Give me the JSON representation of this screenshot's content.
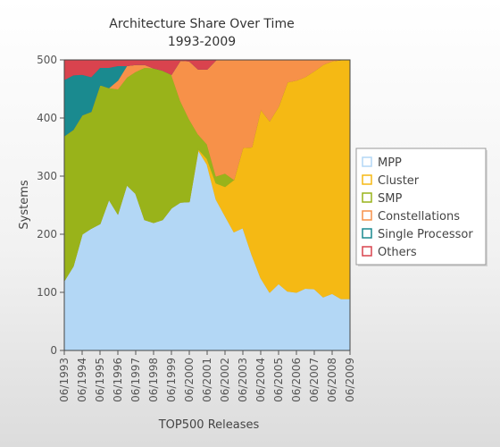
{
  "chart_data": {
    "type": "area",
    "stacked": true,
    "title": "Architecture Share Over Time",
    "subtitle": "1993-2009",
    "xlabel": "TOP500 Releases",
    "ylabel": "Systems",
    "ylim": [
      0,
      500
    ],
    "yticks": [
      0,
      100,
      200,
      300,
      400,
      500
    ],
    "x": [
      "06/1993",
      "11/1993",
      "06/1994",
      "11/1994",
      "06/1995",
      "11/1995",
      "06/1996",
      "11/1996",
      "06/1997",
      "11/1997",
      "06/1998",
      "11/1998",
      "06/1999",
      "11/1999",
      "06/2000",
      "11/2000",
      "06/2001",
      "11/2001",
      "06/2002",
      "11/2002",
      "06/2003",
      "11/2003",
      "06/2004",
      "11/2004",
      "06/2005",
      "11/2005",
      "06/2006",
      "11/2006",
      "06/2007",
      "11/2007",
      "06/2008",
      "11/2008",
      "06/2009"
    ],
    "xtick_labels": [
      "06/1993",
      "06/1994",
      "06/1995",
      "06/1996",
      "06/1997",
      "06/1998",
      "06/1999",
      "06/2000",
      "06/2001",
      "06/2002",
      "06/2003",
      "06/2004",
      "06/2005",
      "06/2006",
      "06/2007",
      "06/2008",
      "06/2009"
    ],
    "legend_position": "right",
    "grid": false,
    "series": [
      {
        "name": "MPP",
        "color": "#b3d7f5",
        "values": [
          120,
          145,
          200,
          210,
          218,
          260,
          235,
          285,
          270,
          225,
          220,
          225,
          245,
          255,
          256,
          345,
          320,
          260,
          232,
          204,
          211,
          165,
          125,
          100,
          115,
          102,
          100,
          107,
          106,
          92,
          98,
          89,
          89
        ]
      },
      {
        "name": "Cluster",
        "color": "#f5b914",
        "values": [
          0,
          0,
          0,
          0,
          0,
          0,
          0,
          0,
          0,
          0,
          0,
          0,
          0,
          0,
          0,
          2,
          10,
          28,
          50,
          90,
          138,
          185,
          290,
          295,
          305,
          360,
          365,
          364,
          375,
          400,
          400,
          411,
          411
        ]
      },
      {
        "name": "SMP",
        "color": "#99b31a",
        "values": [
          249,
          235,
          205,
          201,
          239,
          192,
          215,
          185,
          210,
          262,
          266,
          257,
          230,
          175,
          142,
          25,
          25,
          12,
          23,
          0,
          0,
          0,
          0,
          0,
          0,
          0,
          0,
          0,
          0,
          0,
          0,
          0,
          0
        ]
      },
      {
        "name": "Constellations",
        "color": "#f79149",
        "values": [
          0,
          0,
          0,
          0,
          0,
          0,
          15,
          20,
          12,
          5,
          0,
          0,
          0,
          69,
          100,
          112,
          129,
          200,
          195,
          206,
          151,
          150,
          85,
          105,
          80,
          38,
          35,
          29,
          19,
          8,
          2,
          0,
          0
        ]
      },
      {
        "name": "Single Processor",
        "color": "#1a8a8f",
        "values": [
          97,
          94,
          70,
          60,
          30,
          35,
          25,
          0,
          0,
          0,
          0,
          0,
          0,
          0,
          0,
          0,
          0,
          0,
          0,
          0,
          0,
          0,
          0,
          0,
          0,
          0,
          0,
          0,
          0,
          0,
          0,
          0,
          0
        ]
      },
      {
        "name": "Others",
        "color": "#d9434e",
        "values": [
          34,
          26,
          25,
          29,
          13,
          13,
          10,
          10,
          8,
          8,
          14,
          18,
          25,
          1,
          2,
          16,
          16,
          0,
          0,
          0,
          0,
          0,
          0,
          0,
          0,
          0,
          0,
          0,
          0,
          0,
          0,
          0,
          0
        ]
      }
    ]
  }
}
